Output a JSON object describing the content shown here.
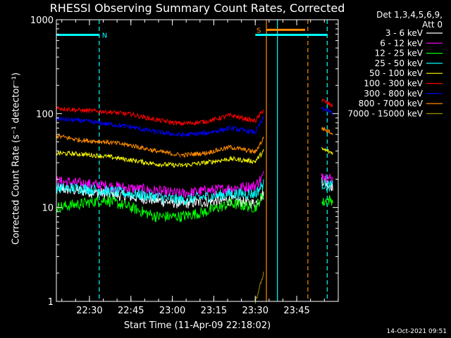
{
  "chart_data": {
    "type": "line",
    "title": "RHESSI Observing Summary Count Rates, Corrected",
    "xlabel": "Start Time (11-Apr-09 22:18:02)",
    "ylabel": "Corrected Count Rate (s⁻¹ detector⁻¹)",
    "y_scale": "log",
    "ylim": [
      1,
      1000
    ],
    "xlim_minutes_after_start": [
      0,
      102
    ],
    "x_tick_labels": [
      "22:30",
      "22:45",
      "23:00",
      "23:15",
      "23:30",
      "23:45"
    ],
    "x_tick_minutes": [
      11.97,
      26.97,
      41.97,
      56.97,
      71.97,
      86.97
    ],
    "y_tick_labels": [
      "1",
      "10",
      "100",
      "1000"
    ],
    "y_tick_values": [
      1,
      10,
      100,
      1000
    ],
    "grid": false,
    "legend_header": [
      "Det 1,3,4,5,6,9,",
      "Att 0"
    ],
    "legend_placement": "top-right outside",
    "x_minutes": [
      0,
      9,
      18,
      27,
      36,
      45,
      54,
      63,
      72,
      75,
      76,
      93,
      96,
      98,
      100
    ],
    "data_gap_minutes": [
      76,
      93
    ],
    "series": [
      {
        "name": "3 - 6 keV",
        "color": "#ffffff",
        "values": [
          16,
          15,
          14,
          13,
          12,
          11,
          11.5,
          12,
          11,
          14,
          null,
          null,
          20,
          18,
          17
        ]
      },
      {
        "name": "6 - 12 keV",
        "color": "#ff00ff",
        "values": [
          19,
          18,
          17,
          16,
          15,
          14,
          15,
          16,
          17,
          22,
          null,
          null,
          23,
          21,
          20
        ]
      },
      {
        "name": "12 - 25 keV",
        "color": "#00ff00",
        "values": [
          10,
          11,
          12,
          10,
          8,
          8,
          9,
          11,
          10,
          14,
          null,
          null,
          11,
          12,
          12
        ]
      },
      {
        "name": "25 - 50 keV",
        "color": "#00ffff",
        "values": [
          16,
          16,
          15,
          14,
          13,
          12,
          13,
          14,
          14,
          18,
          null,
          null,
          18,
          17,
          17
        ]
      },
      {
        "name": "50 - 100 keV",
        "color": "#ffff00",
        "values": [
          38,
          37,
          35,
          32,
          29,
          28,
          30,
          33,
          31,
          40,
          null,
          null,
          42,
          40,
          38
        ]
      },
      {
        "name": "100 - 300 keV",
        "color": "#ff0000",
        "values": [
          115,
          108,
          105,
          98,
          86,
          78,
          82,
          96,
          83,
          110,
          null,
          null,
          140,
          130,
          120
        ]
      },
      {
        "name": "300 - 800 keV",
        "color": "#0000ff",
        "values": [
          88,
          84,
          78,
          72,
          64,
          59,
          62,
          70,
          63,
          90,
          null,
          null,
          115,
          108,
          100
        ]
      },
      {
        "name": "800 - 7000 keV",
        "color": "#ff8c00",
        "values": [
          58,
          52,
          50,
          46,
          40,
          36,
          38,
          44,
          39,
          55,
          null,
          null,
          70,
          66,
          62
        ]
      },
      {
        "name": "7000 - 15000 keV",
        "color": "#a09000",
        "values": [
          null,
          null,
          null,
          null,
          null,
          null,
          null,
          null,
          1,
          2,
          null,
          null,
          null,
          null,
          null
        ]
      }
    ],
    "flag_bars": [
      {
        "label": "N",
        "color": "#00ffff",
        "y_value": 690,
        "x_start": 0,
        "x_end": 15.5
      },
      {
        "label": "",
        "color": "#00ffff",
        "y_value": 690,
        "x_start": 72,
        "x_end": 98
      },
      {
        "label": "S",
        "color": "#ff8c00",
        "y_value": 780,
        "x_start": 76,
        "x_end": 90
      }
    ],
    "vlines": [
      {
        "x": 15.5,
        "color": "#00ffff",
        "style": "dashed"
      },
      {
        "x": 76,
        "color": "#ff8c00",
        "style": "solid"
      },
      {
        "x": 80,
        "color": "#00ffff",
        "style": "solid"
      },
      {
        "x": 91,
        "color": "#ff8c00",
        "style": "dashed"
      },
      {
        "x": 98,
        "color": "#00ffff",
        "style": "dashed"
      }
    ]
  },
  "footer": {
    "timestamp": "14-Oct-2021 09:51"
  }
}
